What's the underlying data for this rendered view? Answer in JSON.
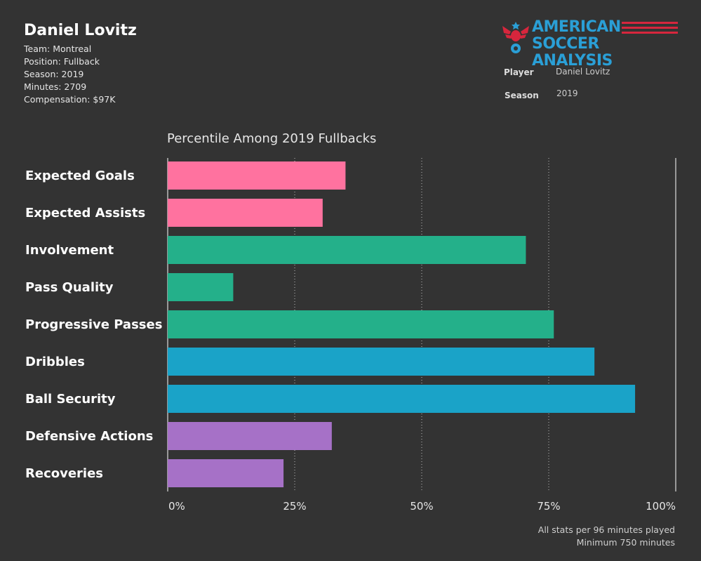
{
  "player": {
    "name": "Daniel Lovitz",
    "team": "Team: Montreal",
    "position": "Position: Fullback",
    "season": "Season: 2019",
    "minutes": "Minutes: 2709",
    "compensation": "Compensation: $97K"
  },
  "logo": {
    "line1": "AMERICAN",
    "line2": "SOCCER ANALYSIS",
    "colors": {
      "text": "#2a9fd6",
      "stripes": "#d7263d"
    }
  },
  "filters": {
    "player_label": "Player",
    "player_value": "Daniel Lovitz",
    "season_label": "Season",
    "season_value": "2019"
  },
  "footnote": {
    "line1": "All stats per 96 minutes played",
    "line2": "Minimum 750 minutes"
  },
  "chart_data": {
    "type": "bar",
    "orientation": "horizontal",
    "title": "Percentile Among 2019 Fullbacks",
    "categories": [
      "Expected Goals",
      "Expected Assists",
      "Involvement",
      "Pass Quality",
      "Progressive Passes",
      "Dribbles",
      "Ball Security",
      "Defensive Actions",
      "Recoveries"
    ],
    "values": [
      35,
      30.5,
      70.5,
      12.9,
      76,
      84,
      92,
      32.3,
      22.8
    ],
    "colors": [
      "#ff729f",
      "#ff729f",
      "#24b08a",
      "#24b08a",
      "#24b08a",
      "#1aa3c8",
      "#1aa3c8",
      "#a671c7",
      "#a671c7"
    ],
    "xlim": [
      0,
      100
    ],
    "xticks": [
      "0%",
      "25%",
      "50%",
      "75%",
      "100%"
    ],
    "grid": "dotted vertical at 25%, 50%, 75%"
  }
}
